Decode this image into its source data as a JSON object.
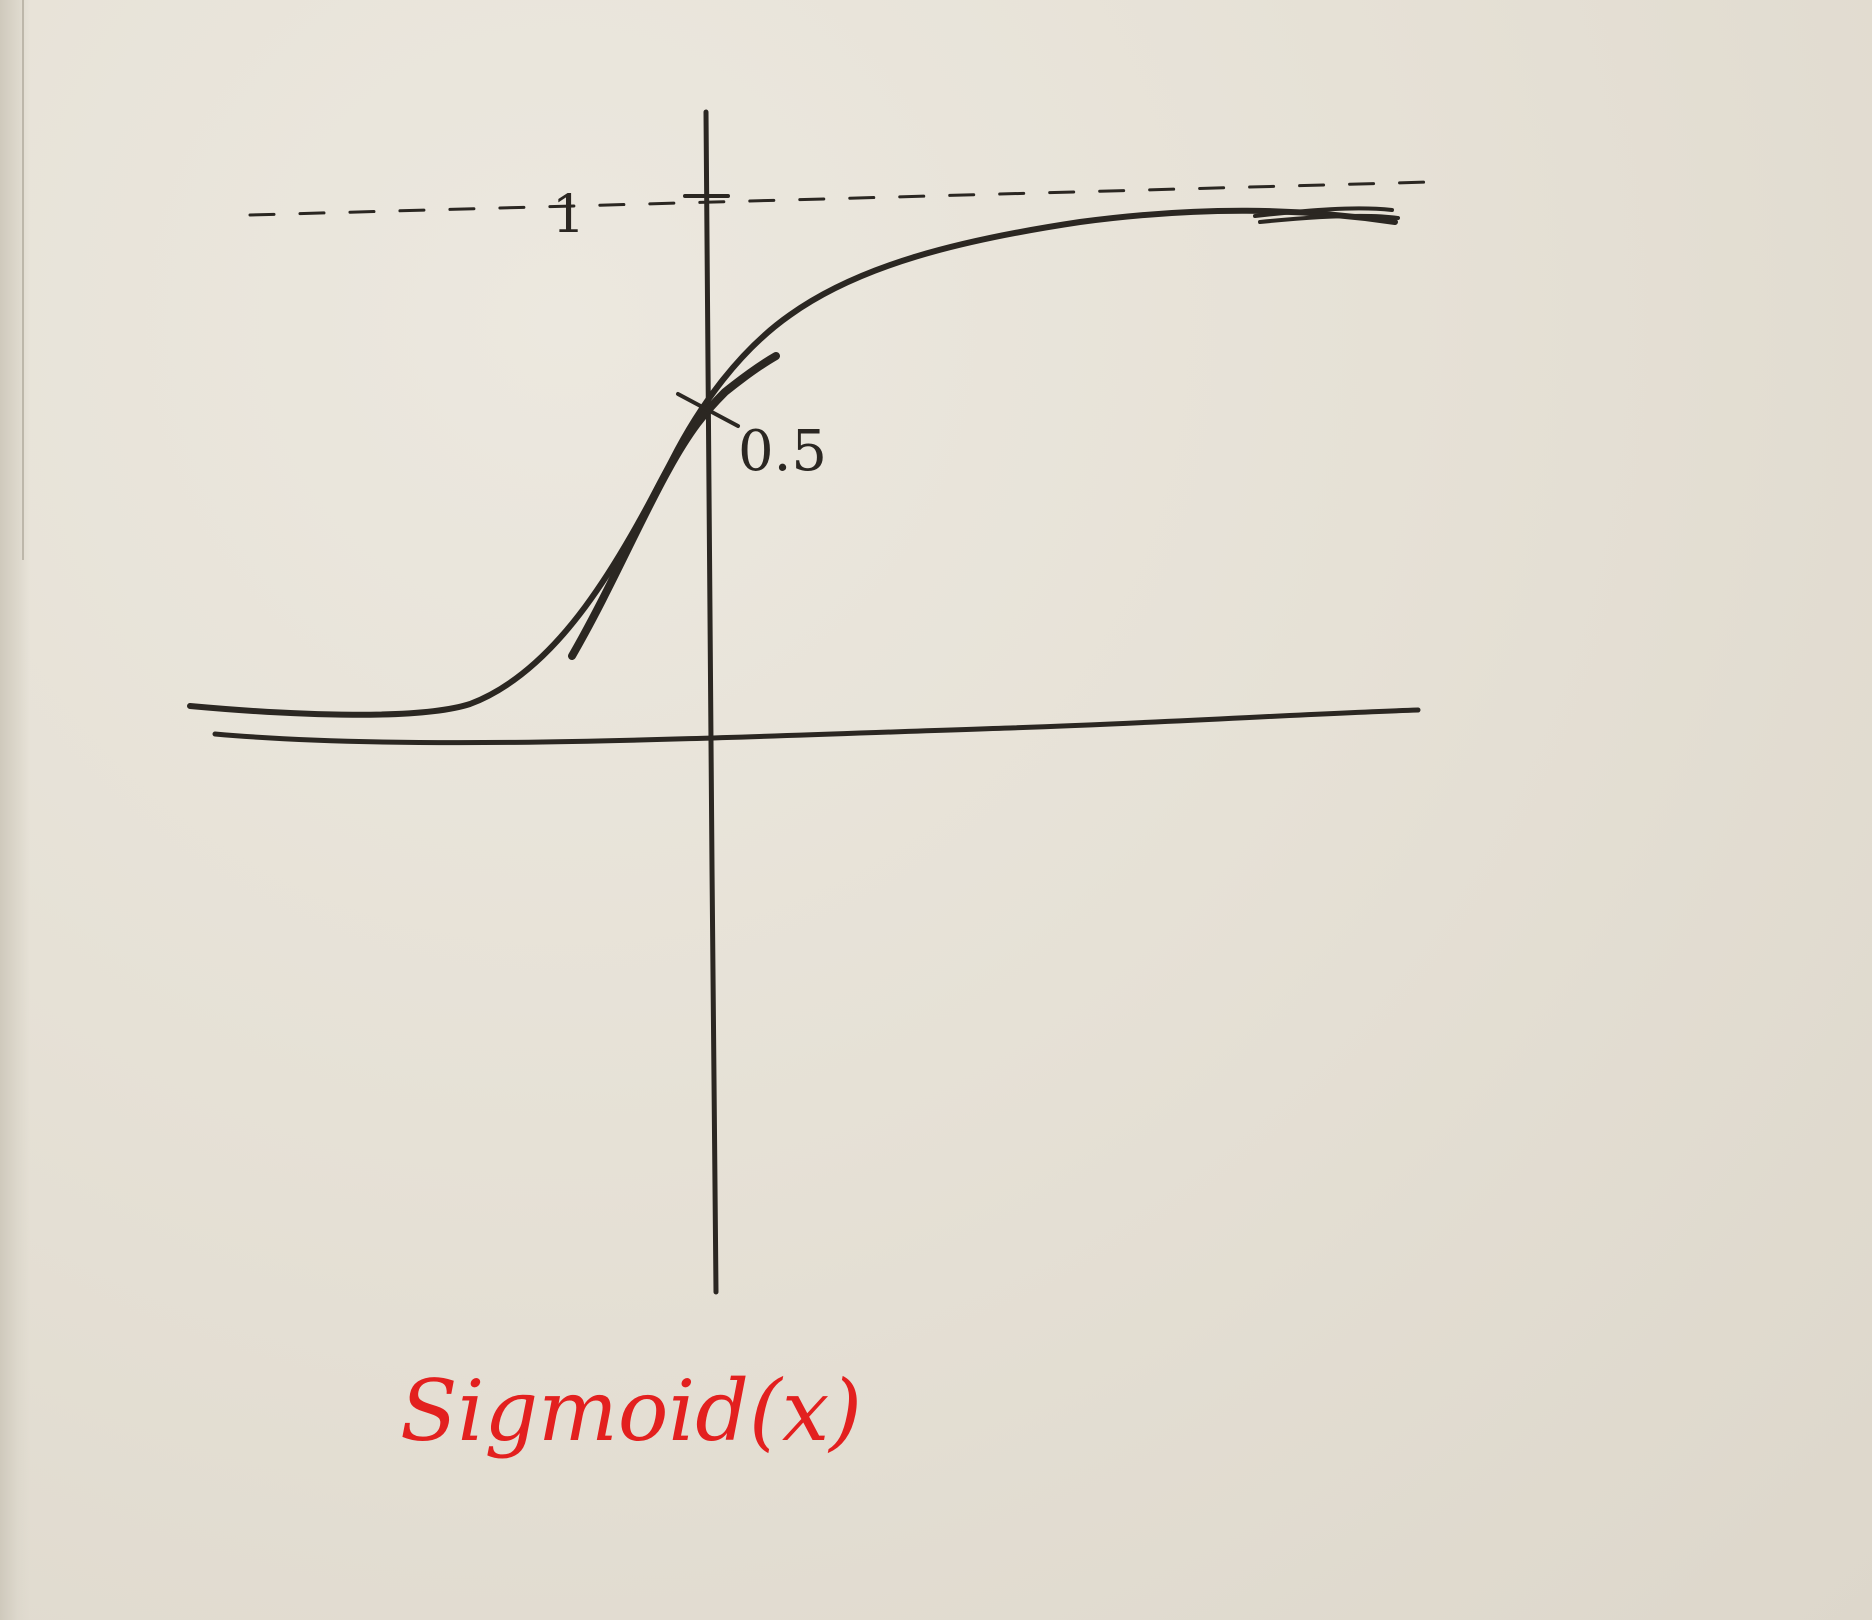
{
  "sketch": {
    "label_one": "1",
    "label_half": "0.5",
    "caption": "Sigmoid(x)",
    "ink_color": "#2b2722",
    "caption_color": "#e3201f",
    "paper_color": "#e7e2d8"
  }
}
